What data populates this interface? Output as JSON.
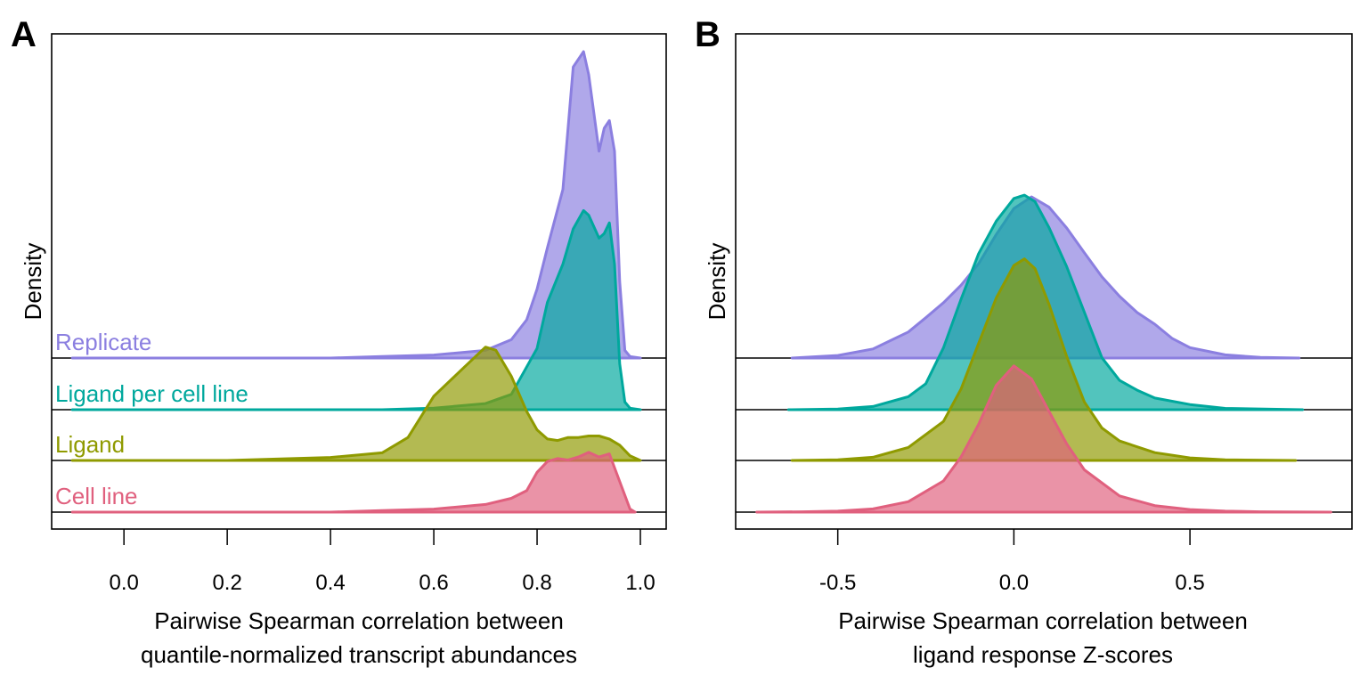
{
  "chart_data": [
    {
      "type": "area",
      "panel": "A",
      "xlabel": [
        "Pairwise Spearman correlation between",
        "quantile-normalized transcript abundances"
      ],
      "ylabel": "Density",
      "xlim": [
        -0.14,
        1.05
      ],
      "xticks": [
        0.0,
        0.2,
        0.4,
        0.6,
        0.8,
        1.0
      ],
      "tick_labels": [
        "0.0",
        "0.2",
        "0.4",
        "0.6",
        "0.8",
        "1.0"
      ],
      "grid": false,
      "layout": "ridgeline",
      "series": [
        {
          "name": "Cell line",
          "color": "#e0607e",
          "x": [
            -0.1,
            0.0,
            0.2,
            0.4,
            0.5,
            0.6,
            0.7,
            0.75,
            0.78,
            0.8,
            0.82,
            0.84,
            0.86,
            0.88,
            0.9,
            0.92,
            0.94,
            0.96,
            0.98,
            0.99
          ],
          "y": [
            0.0,
            0.0,
            0.0,
            0.0,
            0.01,
            0.02,
            0.05,
            0.09,
            0.14,
            0.26,
            0.33,
            0.35,
            0.34,
            0.36,
            0.39,
            0.36,
            0.38,
            0.2,
            0.02,
            0.0
          ]
        },
        {
          "name": "Ligand",
          "color": "#8f9a00",
          "x": [
            -0.1,
            0.0,
            0.2,
            0.4,
            0.5,
            0.55,
            0.6,
            0.65,
            0.7,
            0.72,
            0.75,
            0.78,
            0.8,
            0.82,
            0.84,
            0.86,
            0.88,
            0.9,
            0.92,
            0.94,
            0.96,
            0.98,
            1.0
          ],
          "y": [
            0.0,
            0.0,
            0.0,
            0.02,
            0.05,
            0.15,
            0.42,
            0.58,
            0.74,
            0.72,
            0.55,
            0.32,
            0.2,
            0.14,
            0.13,
            0.15,
            0.15,
            0.16,
            0.16,
            0.14,
            0.1,
            0.03,
            0.0
          ]
        },
        {
          "name": "Ligand per cell line",
          "color": "#00a89d",
          "x": [
            -0.1,
            0.0,
            0.2,
            0.4,
            0.5,
            0.6,
            0.7,
            0.75,
            0.8,
            0.82,
            0.85,
            0.87,
            0.89,
            0.9,
            0.92,
            0.93,
            0.94,
            0.95,
            0.96,
            0.97,
            0.98,
            1.0
          ],
          "y": [
            0.0,
            0.0,
            0.0,
            0.0,
            0.0,
            0.01,
            0.04,
            0.1,
            0.4,
            0.7,
            0.95,
            1.18,
            1.3,
            1.27,
            1.12,
            1.15,
            1.22,
            0.95,
            0.3,
            0.05,
            0.01,
            0.0
          ]
        },
        {
          "name": "Replicate",
          "color": "#8b7fe0",
          "x": [
            -0.1,
            0.0,
            0.2,
            0.4,
            0.5,
            0.6,
            0.7,
            0.75,
            0.78,
            0.8,
            0.82,
            0.85,
            0.87,
            0.89,
            0.9,
            0.92,
            0.93,
            0.94,
            0.95,
            0.96,
            0.97,
            0.98,
            1.0
          ],
          "y": [
            0.0,
            0.0,
            0.0,
            0.0,
            0.01,
            0.02,
            0.05,
            0.12,
            0.25,
            0.45,
            0.72,
            1.1,
            1.9,
            2.0,
            1.85,
            1.35,
            1.5,
            1.55,
            1.35,
            0.5,
            0.05,
            0.01,
            0.0
          ]
        }
      ]
    },
    {
      "type": "area",
      "panel": "B",
      "xlabel": [
        "Pairwise Spearman correlation between",
        "ligand response Z-scores"
      ],
      "ylabel": "Density",
      "xlim": [
        -0.79,
        0.96
      ],
      "xticks": [
        -0.5,
        0.0,
        0.5
      ],
      "tick_labels": [
        "-0.5",
        "0.0",
        "0.5"
      ],
      "grid": false,
      "layout": "ridgeline",
      "series": [
        {
          "name": "Cell line",
          "color": "#e0607e",
          "x": [
            -0.73,
            -0.6,
            -0.5,
            -0.4,
            -0.3,
            -0.2,
            -0.15,
            -0.1,
            -0.05,
            0.0,
            0.05,
            0.1,
            0.15,
            0.2,
            0.3,
            0.4,
            0.5,
            0.6,
            0.7,
            0.9
          ],
          "y": [
            0.0,
            0.005,
            0.015,
            0.05,
            0.16,
            0.48,
            0.85,
            1.35,
            1.95,
            2.25,
            2.05,
            1.55,
            1.05,
            0.65,
            0.25,
            0.1,
            0.04,
            0.015,
            0.005,
            0.0
          ]
        },
        {
          "name": "Ligand",
          "color": "#8f9a00",
          "x": [
            -0.63,
            -0.5,
            -0.4,
            -0.3,
            -0.2,
            -0.15,
            -0.1,
            -0.05,
            0.0,
            0.03,
            0.06,
            0.1,
            0.15,
            0.2,
            0.25,
            0.3,
            0.4,
            0.5,
            0.6,
            0.8
          ],
          "y": [
            0.0,
            0.01,
            0.05,
            0.2,
            0.6,
            1.1,
            1.8,
            2.5,
            3.0,
            3.1,
            2.95,
            2.4,
            1.6,
            0.9,
            0.5,
            0.3,
            0.12,
            0.04,
            0.01,
            0.0
          ]
        },
        {
          "name": "Ligand per cell line",
          "color": "#00a89d",
          "x": [
            -0.64,
            -0.5,
            -0.4,
            -0.3,
            -0.25,
            -0.2,
            -0.15,
            -0.1,
            -0.05,
            0.0,
            0.03,
            0.06,
            0.1,
            0.15,
            0.2,
            0.25,
            0.3,
            0.35,
            0.4,
            0.5,
            0.6,
            0.82
          ],
          "y": [
            0.0,
            0.01,
            0.05,
            0.2,
            0.4,
            0.95,
            1.7,
            2.4,
            2.9,
            3.25,
            3.3,
            3.2,
            2.8,
            2.2,
            1.5,
            0.8,
            0.45,
            0.3,
            0.18,
            0.08,
            0.02,
            0.0
          ]
        },
        {
          "name": "Replicate",
          "color": "#8b7fe0",
          "x": [
            -0.63,
            -0.5,
            -0.4,
            -0.3,
            -0.25,
            -0.2,
            -0.15,
            -0.1,
            -0.05,
            0.0,
            0.05,
            0.1,
            0.15,
            0.2,
            0.25,
            0.3,
            0.35,
            0.4,
            0.45,
            0.5,
            0.6,
            0.7,
            0.81
          ],
          "y": [
            0.0,
            0.04,
            0.14,
            0.4,
            0.62,
            0.85,
            1.12,
            1.45,
            1.9,
            2.3,
            2.48,
            2.32,
            2.0,
            1.62,
            1.25,
            0.95,
            0.7,
            0.52,
            0.3,
            0.16,
            0.05,
            0.01,
            0.0
          ]
        }
      ]
    }
  ]
}
